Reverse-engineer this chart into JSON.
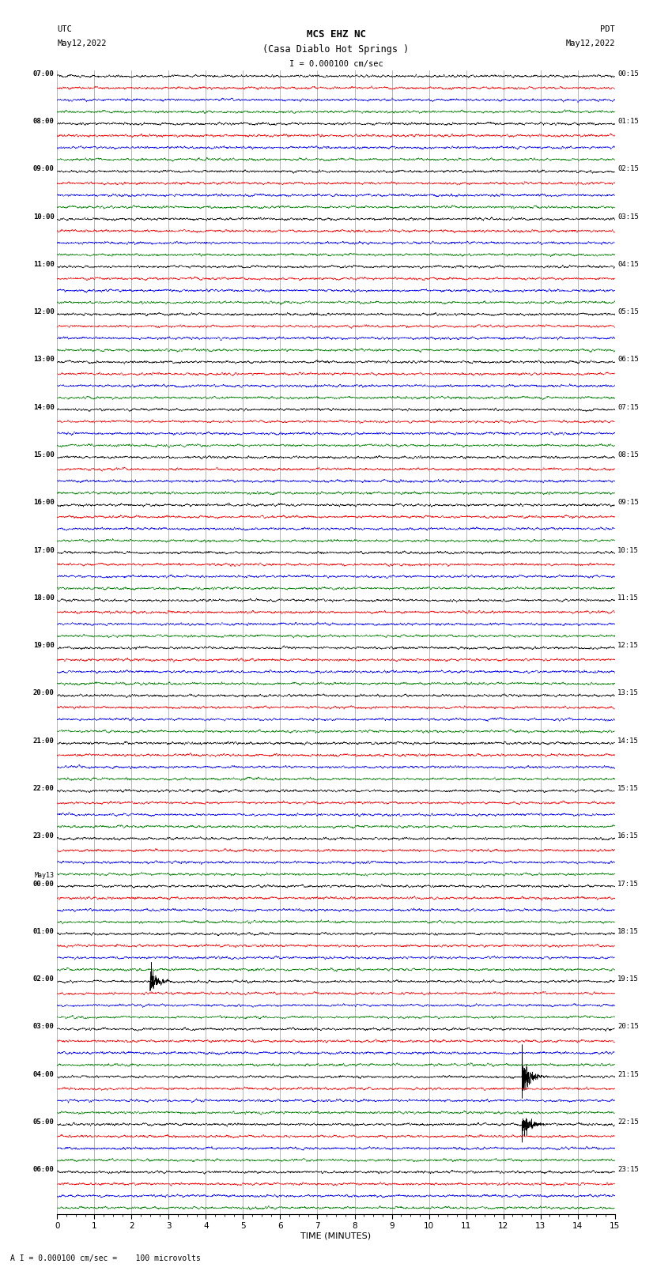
{
  "title_line1": "MCS EHZ NC",
  "title_line2": "(Casa Diablo Hot Springs )",
  "scale_text": "I = 0.000100 cm/sec",
  "bottom_text": "A I = 0.000100 cm/sec =    100 microvolts",
  "utc_label": "UTC",
  "utc_date": "May12,2022",
  "pdt_label": "PDT",
  "pdt_date": "May12,2022",
  "xlabel": "TIME (MINUTES)",
  "left_hour_labels": [
    [
      "07:00",
      0
    ],
    [
      "08:00",
      4
    ],
    [
      "09:00",
      8
    ],
    [
      "10:00",
      12
    ],
    [
      "11:00",
      16
    ],
    [
      "12:00",
      20
    ],
    [
      "13:00",
      24
    ],
    [
      "14:00",
      28
    ],
    [
      "15:00",
      32
    ],
    [
      "16:00",
      36
    ],
    [
      "17:00",
      40
    ],
    [
      "18:00",
      44
    ],
    [
      "19:00",
      48
    ],
    [
      "20:00",
      52
    ],
    [
      "21:00",
      56
    ],
    [
      "22:00",
      60
    ],
    [
      "23:00",
      64
    ],
    [
      "May13",
      67
    ],
    [
      "00:00",
      68
    ],
    [
      "01:00",
      72
    ],
    [
      "02:00",
      76
    ],
    [
      "03:00",
      80
    ],
    [
      "04:00",
      84
    ],
    [
      "05:00",
      88
    ],
    [
      "06:00",
      92
    ]
  ],
  "right_hour_labels": [
    [
      "00:15",
      0
    ],
    [
      "01:15",
      4
    ],
    [
      "02:15",
      8
    ],
    [
      "03:15",
      12
    ],
    [
      "04:15",
      16
    ],
    [
      "05:15",
      20
    ],
    [
      "06:15",
      24
    ],
    [
      "07:15",
      28
    ],
    [
      "08:15",
      32
    ],
    [
      "09:15",
      36
    ],
    [
      "10:15",
      40
    ],
    [
      "11:15",
      44
    ],
    [
      "12:15",
      48
    ],
    [
      "13:15",
      52
    ],
    [
      "14:15",
      56
    ],
    [
      "15:15",
      60
    ],
    [
      "16:15",
      64
    ],
    [
      "17:15",
      68
    ],
    [
      "18:15",
      72
    ],
    [
      "19:15",
      76
    ],
    [
      "20:15",
      80
    ],
    [
      "21:15",
      84
    ],
    [
      "22:15",
      88
    ],
    [
      "23:15",
      92
    ]
  ],
  "trace_color_cycle": [
    "black",
    "red",
    "blue",
    "green"
  ],
  "total_traces": 96,
  "segment_minutes": 15,
  "bg_color": "#ffffff",
  "grid_color": "#999999",
  "figure_width": 8.5,
  "figure_height": 16.13,
  "noise_amplitude": 0.006,
  "event_rows": {
    "76": {
      "minute": 2.5,
      "amp": 0.08,
      "color_idx": 0
    },
    "84": {
      "minute": 12.5,
      "amp": 0.15,
      "color_idx": 0
    },
    "88": {
      "minute": 12.5,
      "amp": 0.12,
      "color_idx": 0
    }
  }
}
